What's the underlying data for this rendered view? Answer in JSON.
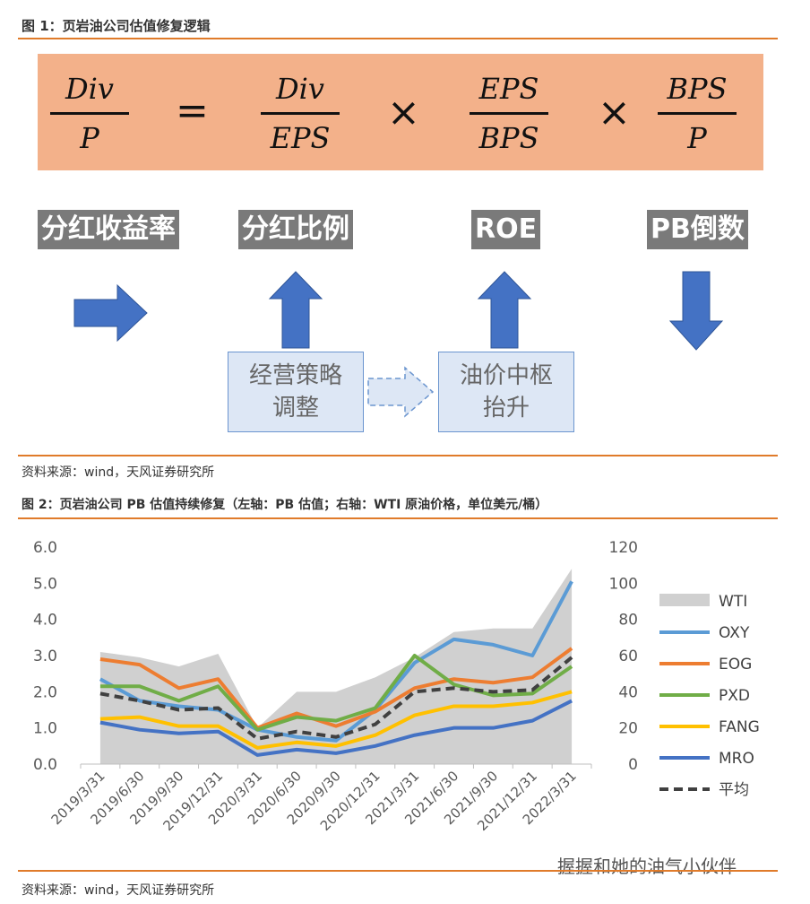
{
  "fig1": {
    "title": "图 1：页岩油公司估值修复逻辑",
    "formula": {
      "lhs": {
        "num": "Div",
        "den": "P"
      },
      "eq": "=",
      "t1": {
        "num": "Div",
        "den": "EPS"
      },
      "t2": {
        "num": "EPS",
        "den": "BPS"
      },
      "t3": {
        "num": "BPS",
        "den": "P"
      },
      "times": "×"
    },
    "terms": [
      "分红收益率",
      "分红比例",
      "ROE",
      "PB倒数"
    ],
    "box1_l1": "经营策略",
    "box1_l2": "调整",
    "box2_l1": "油价中枢",
    "box2_l2": "抬升",
    "source": "资料来源：wind，天风证券研究所",
    "colors": {
      "banner": "#f3b18a",
      "arrow": "#4472c4",
      "box": "#dde7f5"
    }
  },
  "fig2": {
    "title": "图 2：页岩油公司 PB 估值持续修复（左轴：PB 估值；右轴：WTI 原油价格，单位美元/桶）",
    "source": "资料来源：wind，天风证券研究所"
  },
  "chart_data": {
    "type": "line",
    "categories": [
      "2019/3/31",
      "2019/6/30",
      "2019/9/30",
      "2019/12/31",
      "2020/3/31",
      "2020/6/30",
      "2020/9/30",
      "2020/12/31",
      "2021/3/31",
      "2021/6/30",
      "2021/9/30",
      "2021/12/31",
      "2022/3/31"
    ],
    "left_axis": {
      "ylim": [
        0,
        6
      ],
      "ticks": [
        "0.0",
        "1.0",
        "2.0",
        "3.0",
        "4.0",
        "5.0",
        "6.0"
      ]
    },
    "right_axis": {
      "ylim": [
        0,
        120
      ],
      "ticks": [
        "0",
        "20",
        "40",
        "60",
        "80",
        "100",
        "120"
      ]
    },
    "area": {
      "name": "WTI",
      "axis": "right",
      "color": "#d0d0d0",
      "values": [
        62,
        59,
        54,
        61,
        20,
        40,
        40,
        48,
        59,
        73,
        75,
        75,
        108
      ]
    },
    "series": [
      {
        "name": "OXY",
        "color": "#5b9bd5",
        "values": [
          2.35,
          1.75,
          1.6,
          1.5,
          0.95,
          0.75,
          0.65,
          1.5,
          2.8,
          3.45,
          3.3,
          3.0,
          5.05
        ]
      },
      {
        "name": "EOG",
        "color": "#ed7d31",
        "values": [
          2.9,
          2.75,
          2.1,
          2.35,
          1.0,
          1.4,
          1.05,
          1.45,
          2.1,
          2.35,
          2.25,
          2.4,
          3.2
        ]
      },
      {
        "name": "PXD",
        "color": "#70ad47",
        "values": [
          2.15,
          2.15,
          1.75,
          2.15,
          0.95,
          1.3,
          1.2,
          1.55,
          3.0,
          2.2,
          1.9,
          1.95,
          2.7
        ]
      },
      {
        "name": "FANG",
        "color": "#ffc000",
        "values": [
          1.25,
          1.3,
          1.05,
          1.05,
          0.45,
          0.6,
          0.5,
          0.8,
          1.35,
          1.6,
          1.6,
          1.7,
          2.0
        ]
      },
      {
        "name": "MRO",
        "color": "#4472c4",
        "values": [
          1.15,
          0.95,
          0.85,
          0.9,
          0.25,
          0.4,
          0.3,
          0.5,
          0.8,
          1.0,
          1.0,
          1.2,
          1.75
        ]
      },
      {
        "name": "平均",
        "color": "#404040",
        "dashed": true,
        "values": [
          1.95,
          1.75,
          1.5,
          1.55,
          0.7,
          0.9,
          0.75,
          1.1,
          2.0,
          2.1,
          2.0,
          2.05,
          2.95
        ]
      }
    ],
    "legend": "right"
  },
  "watermark": "握握和她的油气小伙伴"
}
